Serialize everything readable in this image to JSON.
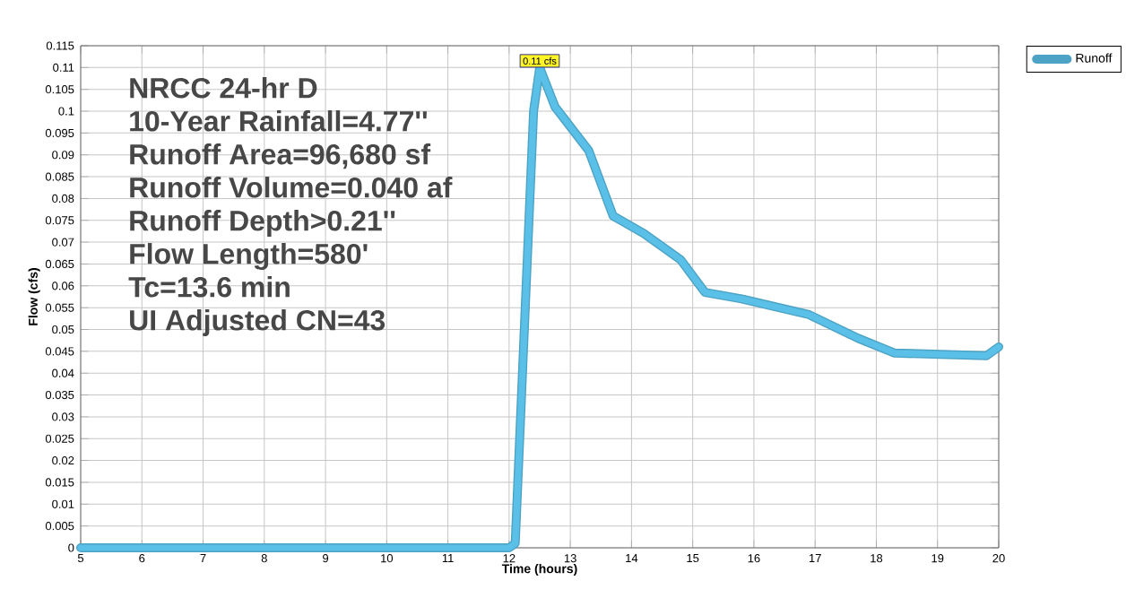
{
  "chart_data": {
    "type": "line",
    "xlabel": "Time  (hours)",
    "ylabel": "Flow  (cfs)",
    "xlim": [
      5,
      20
    ],
    "xticks": [
      5,
      6,
      7,
      8,
      9,
      10,
      11,
      12,
      13,
      14,
      15,
      16,
      17,
      18,
      19,
      20
    ],
    "ylim": [
      0,
      0.115
    ],
    "yticks": [
      0,
      0.005,
      0.01,
      0.015,
      0.02,
      0.025,
      0.03,
      0.035,
      0.04,
      0.045,
      0.05,
      0.055,
      0.06,
      0.065,
      0.07,
      0.075,
      0.08,
      0.085,
      0.09,
      0.095,
      0.1,
      0.105,
      0.11,
      0.115
    ],
    "grid": true,
    "legend": "top right",
    "line_style": "solid",
    "marker": "none",
    "series": [
      {
        "name": "Runoff",
        "color": "#5bc0e8",
        "x": [
          5,
          12.0,
          12.1,
          12.4,
          12.5,
          12.75,
          13.3,
          13.7,
          14.2,
          14.8,
          15.2,
          15.8,
          16.9,
          17.7,
          18.3,
          19.8,
          20
        ],
        "values": [
          0,
          0,
          0.001,
          0.1,
          0.11,
          0.101,
          0.091,
          0.076,
          0.072,
          0.066,
          0.0585,
          0.057,
          0.0534,
          0.048,
          0.0446,
          0.044,
          0.046
        ]
      }
    ],
    "annotations": [
      "NRCC 24-hr D",
      "10-Year Rainfall=4.77''",
      "Runoff Area=96,680 sf",
      "Runoff Volume=0.040 af",
      "Runoff Depth>0.21''",
      "Flow Length=580'",
      "Tc=13.6 min",
      "UI Adjusted CN=43",
      {
        "text": "0.11 cfs",
        "x": 12.5,
        "y": 0.11
      }
    ]
  }
}
